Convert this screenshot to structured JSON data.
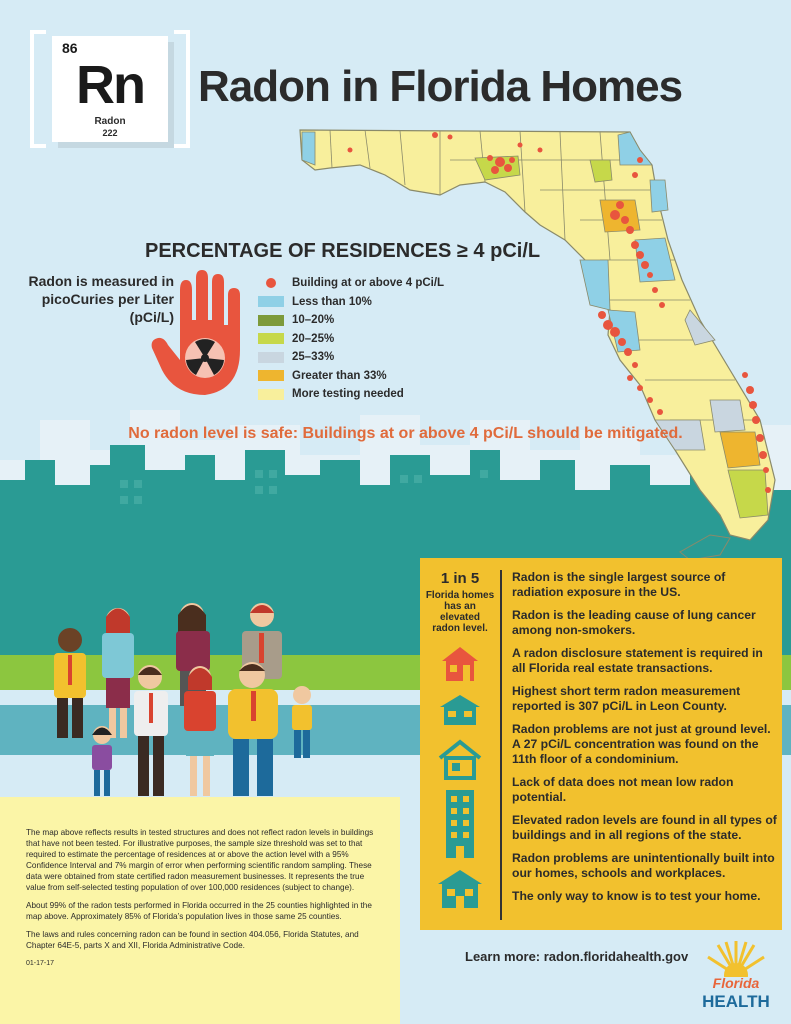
{
  "element": {
    "number": "86",
    "symbol": "Rn",
    "name": "Radon",
    "mass": "222"
  },
  "title": "Radon in Florida Homes",
  "legend": {
    "title": "PERCENTAGE OF RESIDENCES ≥ 4 pCi/L",
    "measure_line1": "Radon is measured in",
    "measure_line2": "picoCuries per Liter",
    "measure_line3": "(pCi/L)",
    "items": [
      {
        "label": "Building at or above 4 pCi/L",
        "color": "#e8553e"
      },
      {
        "label": "Less than 10%",
        "color": "#8fd0e6"
      },
      {
        "label": "10–20%",
        "color": "#7d9a3a"
      },
      {
        "label": "20–25%",
        "color": "#c6d84a"
      },
      {
        "label": "25–33%",
        "color": "#c9d6e0"
      },
      {
        "label": "Greater than 33%",
        "color": "#eeb52f"
      },
      {
        "label": "More testing needed",
        "color": "#f8ef9c"
      }
    ]
  },
  "safe_message": "No radon level is safe: Buildings at or above 4 pCi/L should be mitigated.",
  "stat": {
    "number": "1 in 5",
    "text1": "Florida homes",
    "text2": "has an",
    "text3": "elevated",
    "text4": "radon level."
  },
  "facts": [
    "Radon is the single largest source of radiation exposure in the US.",
    "Radon is the leading cause of lung cancer among non-smokers.",
    "A radon disclosure statement is required in all Florida real estate transactions.",
    "Highest short term radon measurement reported is 307 pCi/L in Leon County.",
    "Radon problems are not just at ground level. A 27 pCi/L concentration was found on the 11th floor of a condominium.",
    "Lack of data does not mean low radon potential.",
    "Elevated radon levels are found in all types of buildings and in all regions of the state.",
    "Radon problems are unintentionally built into our homes, schools and workplaces.",
    "The only way to know is to test your home."
  ],
  "notes": {
    "p1": "The map above reflects results in tested structures and does not reflect radon levels in buildings that have not been tested. For illustrative purposes, the sample size threshold was set to that required to estimate the percentage of residences at or above the action level with a 95% Confidence Interval and 7% margin of error when performing scientific random sampling. These data were obtained from state certified radon measurement businesses. It represents the true value from self-selected testing population of over 100,000 residences (subject to change).",
    "p2": "About 99% of the radon tests performed in Florida occurred in the 25 counties highlighted in the map above. Approximately 85% of Florida’s population lives in those same 25 counties.",
    "p3": "The laws and rules concerning radon can be found in section 404.056, Florida Statutes, and Chapter 64E-5, parts X and XII, Florida Administrative Code.",
    "date": "01-17-17"
  },
  "learn_more": "Learn more: radon.floridahealth.gov",
  "logo": {
    "line1": "Florida",
    "line2": "HEALTH"
  },
  "colors": {
    "accent_orange": "#e8553e",
    "panel_yellow": "#f2c12e",
    "teal": "#2a9b94",
    "note_yellow": "#fbf5a7"
  }
}
